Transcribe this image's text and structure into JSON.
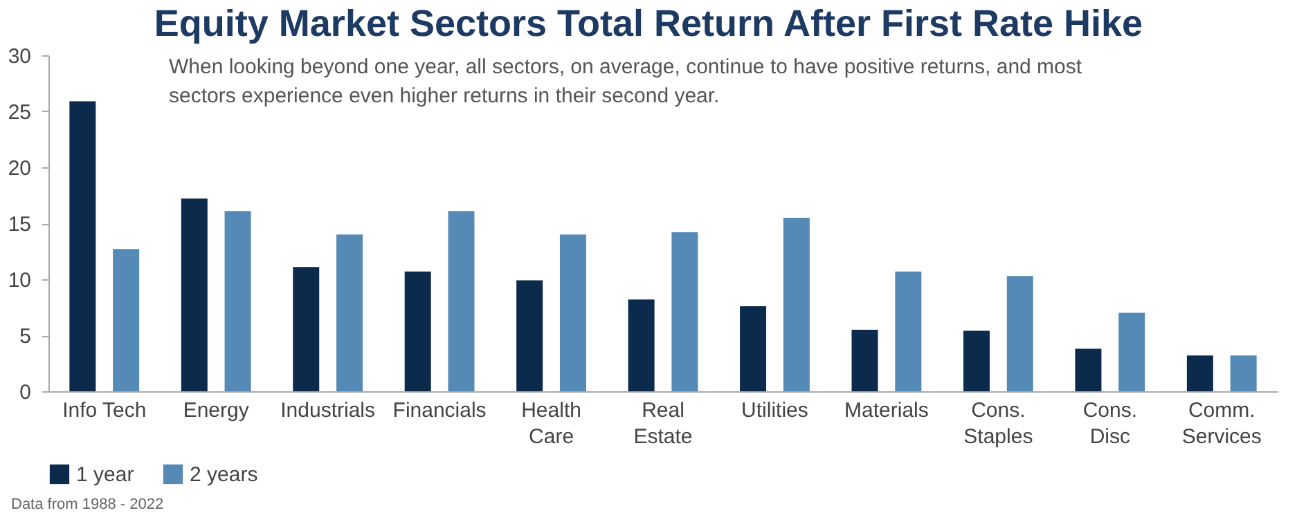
{
  "chart_data": {
    "type": "bar",
    "title": "Equity Market Sectors Total Return After First Rate Hike",
    "subtitle": "When looking beyond one year, all sectors, on average, continue to have positive returns, and most sectors experience even higher returns in their second year.",
    "annotations": [
      "Data from 1988 - 2022"
    ],
    "categories": [
      "Info Tech",
      "Energy",
      "Industrials",
      "Financials",
      "Health\nCare",
      "Real\nEstate",
      "Utilities",
      "Materials",
      "Cons.\nStaples",
      "Cons.\nDisc",
      "Comm.\nServices"
    ],
    "series": [
      {
        "name": "1 year",
        "color": "#0c2a4b",
        "values": [
          25.9,
          17.2,
          11.1,
          10.7,
          9.9,
          8.2,
          7.6,
          5.5,
          5.4,
          3.8,
          3.2
        ]
      },
      {
        "name": "2 years",
        "color": "#558ab6",
        "values": [
          12.7,
          16.1,
          14.0,
          16.1,
          14.0,
          14.2,
          15.5,
          10.7,
          10.3,
          7.0,
          3.2
        ]
      }
    ],
    "ylim": [
      0,
      30
    ],
    "yticks": [
      0,
      5,
      10,
      15,
      20,
      25,
      30
    ],
    "grid": false,
    "legend": "bottom"
  }
}
